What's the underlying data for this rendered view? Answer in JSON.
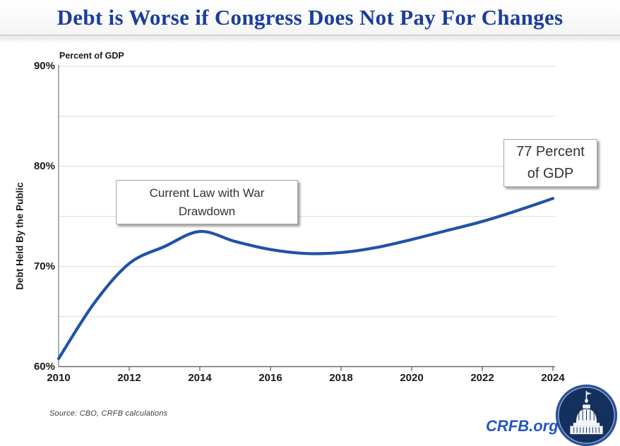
{
  "header": {
    "title": "Debt is Worse if Congress Does Not Pay For Changes"
  },
  "chart_data": {
    "type": "line",
    "title": "Debt is Worse if Congress Does Not Pay For Changes",
    "unit_label": "Percent of GDP",
    "ylabel": "Debt Held By the Public",
    "xlabel": "",
    "x": [
      2010,
      2011,
      2012,
      2013,
      2014,
      2015,
      2016,
      2017,
      2018,
      2019,
      2020,
      2021,
      2022,
      2023,
      2024
    ],
    "series": [
      {
        "name": "Current Law with War Drawdown",
        "values": [
          60.8,
          66.3,
          70.3,
          72.0,
          73.5,
          72.5,
          71.7,
          71.3,
          71.4,
          71.9,
          72.7,
          73.6,
          74.5,
          75.6,
          76.8
        ]
      }
    ],
    "xlim": [
      2010,
      2024
    ],
    "ylim": [
      60,
      90
    ],
    "x_ticks": [
      2010,
      2012,
      2014,
      2016,
      2018,
      2020,
      2022,
      2024
    ],
    "y_ticks": [
      {
        "value": 60,
        "label": "60%"
      },
      {
        "value": 70,
        "label": "70%"
      },
      {
        "value": 80,
        "label": "80%"
      },
      {
        "value": 90,
        "label": "90%"
      }
    ],
    "gridline_values": [
      65,
      70,
      75,
      80,
      85,
      90
    ],
    "grid": true,
    "legend_position": "none",
    "line_color": "#1f52a8",
    "annotations": [
      {
        "label": "Current Law with War Drawdown"
      },
      {
        "label": "77 Percent of GDP"
      }
    ]
  },
  "colors": {
    "title_blue": "#1b3e9b",
    "line_blue": "#1f52a8",
    "link_blue": "#2355c4",
    "gridline": "#dcdcdc",
    "axis": "#7a7a7a"
  },
  "icons": {
    "logo": "crfb-capitol-logo"
  },
  "footer": {
    "source": "Source:  CBO, CRFB calculations",
    "site": "CRFB.org"
  }
}
